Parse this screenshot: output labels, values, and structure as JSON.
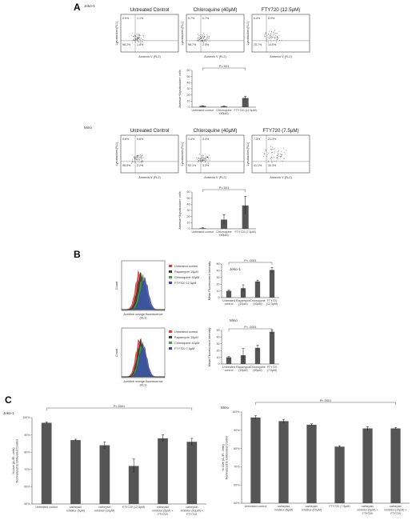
{
  "panels": {
    "A": {
      "label": "A",
      "rows": [
        {
          "cell_line": "Jeko-1",
          "plots": [
            {
              "title": "Untreated  Control",
              "quadrants": [
                "0.9%",
                "1.1%",
                "96.2%",
                "1.8%"
              ]
            },
            {
              "title": "Chloroquine (40µM)",
              "quadrants": [
                "0.7%",
                "0.7%",
                "96.7%",
                "2.0%"
              ]
            },
            {
              "title": "FTY720 (12.5µM)",
              "quadrants": [
                "6.4%",
                "8.9%",
                "70.7%",
                "14.0%"
              ]
            }
          ],
          "xlabel": "Annexin V (FL2)",
          "ylabel": "Lysotracker (FL1)"
        },
        {
          "cell_line": "Mino",
          "plots": [
            {
              "title": "Untreated  Control",
              "quadrants": [
                "0.6%",
                "0.6%",
                "96.5%",
                "2.2%"
              ]
            },
            {
              "title": "Chloroquine (40µM)",
              "quadrants": [
                "1.4%",
                "3.4%",
                "92.1%",
                "3.2%"
              ]
            },
            {
              "title": "FTY720 (7.5µM)",
              "quadrants": [
                "7.3%",
                "21.3%",
                "41.1%",
                "30.3%"
              ]
            }
          ],
          "xlabel": "Annexin V (FL2)",
          "ylabel": "Lysotracker (FL1)"
        }
      ]
    },
    "B": {
      "label": "B",
      "rows": [
        {
          "cell_line": "Jeko-1",
          "hist_xlabel": "Acridine orange fluorescence\n(FL1)",
          "hist_ylabel": "Count",
          "legend": [
            {
              "label": "Untreated control",
              "color": "#e53935"
            },
            {
              "label": "Rapamycin 10µM",
              "color": "#3a3a3a"
            },
            {
              "label": "Chloroquine 40µM",
              "color": "#43a047"
            },
            {
              "label": "FTY720 12.5µM",
              "color": "#3949ab"
            }
          ]
        },
        {
          "cell_line": "Mino",
          "hist_xlabel": "Acridine orange fluorescence\n(FL1)",
          "hist_ylabel": "Count",
          "legend": [
            {
              "label": "Untreated control",
              "color": "#e53935"
            },
            {
              "label": "Rapamycin 10µM",
              "color": "#3a3a3a"
            },
            {
              "label": "Chloroquine 40µM",
              "color": "#43a047"
            },
            {
              "label": "FTY720 7.5µM",
              "color": "#3949ab"
            }
          ]
        }
      ]
    },
    "C": {
      "label": "C"
    }
  },
  "chart_data": [
    {
      "type": "bar",
      "panel": "A",
      "cell_line": "Jeko-1",
      "categories": [
        "Untreated control",
        "Chloroquine\n(40µM)",
        "FTY720 (12.5µM)"
      ],
      "values": [
        2,
        1.5,
        15
      ],
      "errors": [
        0.5,
        0.5,
        3
      ],
      "ylabel": "Annexin+/Lysotracker+ cells",
      "ylim": [
        0,
        60
      ],
      "yticks": [
        "0",
        "10",
        "20",
        "30",
        "40",
        "50",
        "60"
      ],
      "sig_label": "P<.001"
    },
    {
      "type": "bar",
      "panel": "A",
      "cell_line": "Mino",
      "categories": [
        "Untreated control",
        "Chloroquine\n(40µM)",
        "FTY720 (7.5µM)"
      ],
      "values": [
        1,
        15,
        38
      ],
      "errors": [
        1,
        8,
        15
      ],
      "ylabel": "Annexin+/Lysotracker+ cells",
      "ylim": [
        0,
        60
      ],
      "yticks": [
        "0",
        "10",
        "20",
        "30",
        "40",
        "50",
        "60"
      ],
      "sig_label": "P<.001"
    },
    {
      "type": "bar",
      "panel": "B",
      "cell_line": "Jeko-1",
      "categories": [
        "Untreated\ncontrol",
        "Rapamycin\n(10µM)",
        "Chloroquine\n(40µM)",
        "FTY720\n(12.5µM)"
      ],
      "values": [
        10,
        14,
        24,
        41
      ],
      "errors": [
        1,
        5,
        2,
        4
      ],
      "ylabel": "Mean Fluorescence Intensity",
      "ylim": [
        0,
        50
      ],
      "yticks": [
        "0",
        "10",
        "20",
        "30",
        "40",
        "50"
      ],
      "sig_label": "P< .0001"
    },
    {
      "type": "bar",
      "panel": "B",
      "cell_line": "Mino",
      "categories": [
        "Untreated\ncontrol",
        "Rapamycin\n(10µM)",
        "Chloroquine\n(40µM)",
        "FTY720\n(7.5µM)"
      ],
      "values": [
        10,
        13,
        24,
        48
      ],
      "errors": [
        1,
        10,
        4,
        3
      ],
      "ylabel": "Mean Fluorescence Intensity",
      "ylim": [
        0,
        50
      ],
      "yticks": [
        "0",
        "10",
        "20",
        "30",
        "40",
        "50"
      ],
      "sig_label": "P< .0001"
    },
    {
      "type": "bar",
      "panel": "C",
      "cell_line": "Jeko-1",
      "categories": [
        "Untreated control",
        "cathepsin\ninhibitor (5µM)",
        "cathepsin\ninhibitor (10µM)",
        "FTY720 (12.5µM)",
        "cathepsin\ninhibitor (5µM) +\nFTY720",
        "cathepsin\ninhibitor (10µM) +\nFTY720"
      ],
      "values": [
        97,
        87,
        84,
        72,
        88,
        86
      ],
      "errors": [
        0.5,
        0.5,
        2,
        4,
        2,
        2
      ],
      "ylabel": "% Live (A-/PI- cells)\nNormalized to Untreated Control",
      "ylim": [
        50,
        100
      ],
      "yticks": [
        "50%",
        "60%",
        "70%",
        "80%",
        "90%",
        "100%"
      ],
      "sig_label": "P<.0001"
    },
    {
      "type": "bar",
      "panel": "C",
      "cell_line": "Mino",
      "categories": [
        "Untreated control",
        "cathepsin\ninhibitor (5µM)",
        "cathepsin\ninhibitor (10µM)",
        "FTY720 (7.5µM)",
        "cathepsin\ninhibitor (5µM) +\nFTY720",
        "cathepsin\ninhibitor (10µM) +\nFTY720"
      ],
      "values": [
        97,
        95,
        93,
        81,
        91,
        91
      ],
      "errors": [
        1,
        1,
        0.5,
        0.5,
        1,
        0.5
      ],
      "ylabel": "% Live (A-/PI- cells)\nNormalized to Untreated Control",
      "ylim": [
        50,
        100
      ],
      "yticks": [
        "50%",
        "60%",
        "70%",
        "80%",
        "90%",
        "100%"
      ],
      "sig_label": "P<.0001"
    }
  ]
}
